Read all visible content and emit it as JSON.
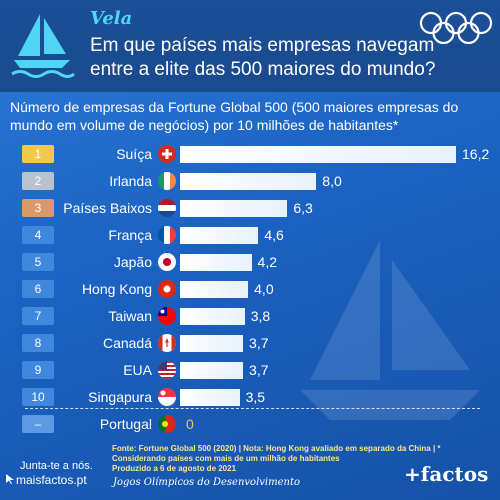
{
  "header": {
    "eyebrow": "Vela",
    "title": "Em que países mais empresas navegam entre a elite das 500 maiores do mundo?"
  },
  "subtitle": "Número de empresas da Fortune Global 500 (500 maiores empresas do mundo em volume de negócios) por 10 milhões de habitantes*",
  "chart_data": {
    "type": "bar",
    "orientation": "horizontal",
    "categories": [
      "Suíça",
      "Irlanda",
      "Países Baixos",
      "França",
      "Japão",
      "Hong Kong",
      "Taiwan",
      "Canadá",
      "EUA",
      "Singapura",
      "Portugal"
    ],
    "ranks": [
      "1",
      "2",
      "3",
      "4",
      "5",
      "6",
      "7",
      "8",
      "9",
      "10",
      "–"
    ],
    "values": [
      16.2,
      8.0,
      6.3,
      4.6,
      4.2,
      4.0,
      3.8,
      3.7,
      3.7,
      3.5,
      0
    ],
    "value_labels": [
      "16,2",
      "8,0",
      "6,3",
      "4,6",
      "4,2",
      "4,0",
      "3,8",
      "3,7",
      "3,7",
      "3,5",
      "0"
    ],
    "flags": [
      "switzerland-flag",
      "ireland-flag",
      "netherlands-flag",
      "france-flag",
      "japan-flag",
      "hong-kong-flag",
      "taiwan-flag",
      "canada-flag",
      "usa-flag",
      "singapore-flag",
      "portugal-flag"
    ],
    "xlim": [
      0,
      16.2
    ]
  },
  "colors": {
    "gold": "#f2c94c",
    "silver": "#b9c3cf",
    "bronze": "#d79a6c",
    "rank_default": "#3f88dd",
    "highlight_value": "#f2c94c",
    "accent": "#4fd6f5"
  },
  "footer": {
    "sources": "Fonte: Fortune Global 500 (2020) | Nota: Hong Kong avaliado em separado da China | * Considerando países com mais de um milhão de habitantes",
    "produced": "Produzido a 6 de agosto de 2021",
    "cta": "Junta-te a nós.",
    "site": "maisfactos.pt",
    "series": "Jogos Olímpicos do Desenvolvimento",
    "brand": "+factos"
  }
}
